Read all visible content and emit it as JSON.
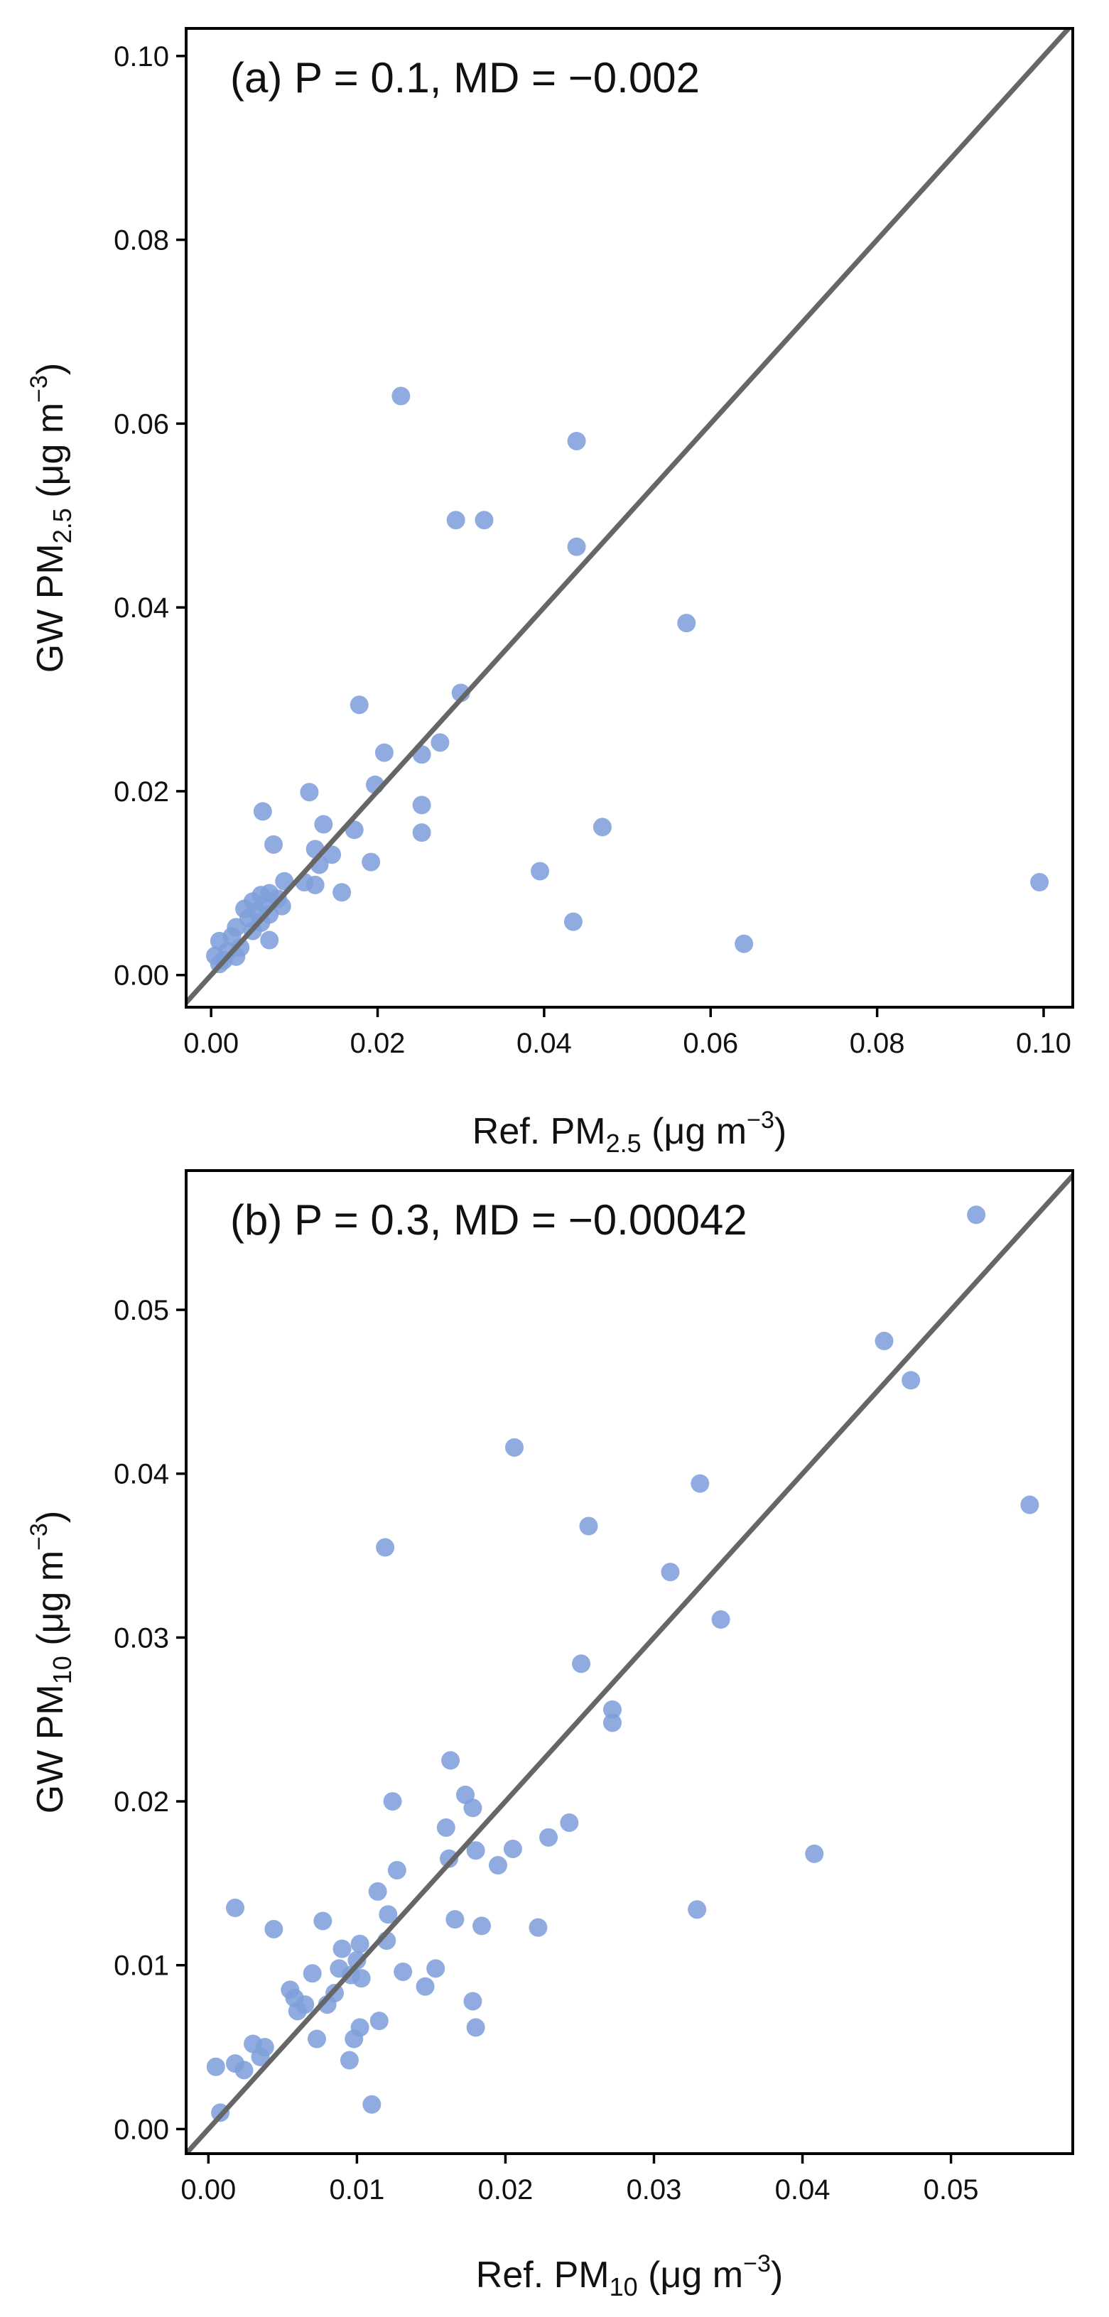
{
  "colors": {
    "points": "#7f9fdb",
    "line": "#666666",
    "frame": "#000000"
  },
  "chart_data": [
    {
      "type": "scatter",
      "panel_label": "(a) P = 0.1, MD = −0.002",
      "xlabel": {
        "prefix": "Ref. PM",
        "sub": "2.5",
        "suffix": " (μg m",
        "sup": "−3",
        "close": ")"
      },
      "ylabel": {
        "prefix": "GW PM",
        "sub": "2.5",
        "suffix": " (μg m",
        "sup": "−3",
        "close": ")"
      },
      "xlim": [
        -0.003,
        0.1035
      ],
      "ylim": [
        -0.0035,
        0.103
      ],
      "xticks": [
        0.0,
        0.02,
        0.04,
        0.06,
        0.08,
        0.1
      ],
      "xtick_labels": [
        "0.00",
        "0.02",
        "0.04",
        "0.06",
        "0.08",
        "0.10"
      ],
      "yticks": [
        0.0,
        0.02,
        0.04,
        0.06,
        0.08,
        0.1
      ],
      "ytick_labels": [
        "0.00",
        "0.02",
        "0.04",
        "0.06",
        "0.08",
        "0.10"
      ],
      "reference_line": "1:1",
      "points": [
        [
          0.0228,
          0.063
        ],
        [
          0.0439,
          0.0581
        ],
        [
          0.0294,
          0.0495
        ],
        [
          0.0328,
          0.0495
        ],
        [
          0.0439,
          0.0466
        ],
        [
          0.0571,
          0.0383
        ],
        [
          0.0178,
          0.0294
        ],
        [
          0.03,
          0.0307
        ],
        [
          0.0275,
          0.0253
        ],
        [
          0.0208,
          0.0242
        ],
        [
          0.0253,
          0.024
        ],
        [
          0.0197,
          0.0207
        ],
        [
          0.0118,
          0.0199
        ],
        [
          0.0253,
          0.0185
        ],
        [
          0.0062,
          0.0178
        ],
        [
          0.0135,
          0.0164
        ],
        [
          0.047,
          0.0161
        ],
        [
          0.0172,
          0.0158
        ],
        [
          0.0253,
          0.0155
        ],
        [
          0.0075,
          0.0142
        ],
        [
          0.0125,
          0.0137
        ],
        [
          0.0145,
          0.0131
        ],
        [
          0.0192,
          0.0123
        ],
        [
          0.013,
          0.012
        ],
        [
          0.0395,
          0.0113
        ],
        [
          0.0088,
          0.0102
        ],
        [
          0.0112,
          0.0101
        ],
        [
          0.0995,
          0.0101
        ],
        [
          0.0125,
          0.0098
        ],
        [
          0.0157,
          0.009
        ],
        [
          0.007,
          0.0089
        ],
        [
          0.006,
          0.0087
        ],
        [
          0.008,
          0.0083
        ],
        [
          0.005,
          0.008
        ],
        [
          0.0065,
          0.0077
        ],
        [
          0.0085,
          0.0075
        ],
        [
          0.004,
          0.0072
        ],
        [
          0.0055,
          0.0069
        ],
        [
          0.007,
          0.0066
        ],
        [
          0.0045,
          0.0062
        ],
        [
          0.0435,
          0.0058
        ],
        [
          0.006,
          0.0057
        ],
        [
          0.003,
          0.0052
        ],
        [
          0.005,
          0.0048
        ],
        [
          0.0025,
          0.0042
        ],
        [
          0.007,
          0.0038
        ],
        [
          0.001,
          0.0037
        ],
        [
          0.064,
          0.0034
        ],
        [
          0.0035,
          0.003
        ],
        [
          0.002,
          0.0026
        ],
        [
          0.0005,
          0.0021
        ],
        [
          0.0015,
          0.0016
        ],
        [
          0.003,
          0.002
        ],
        [
          0.001,
          0.0012
        ]
      ]
    },
    {
      "type": "scatter",
      "panel_label": "(b) P = 0.3, MD = −0.00042",
      "xlabel": {
        "prefix": "Ref. PM",
        "sub": "10",
        "suffix": " (μg m",
        "sup": "−3",
        "close": ")"
      },
      "ylabel": {
        "prefix": "GW PM",
        "sub": "10",
        "suffix": " (μg m",
        "sup": "−3",
        "close": ")"
      },
      "xlim": [
        -0.0015,
        0.0582
      ],
      "ylim": [
        -0.0015,
        0.0585
      ],
      "xticks": [
        0.0,
        0.01,
        0.02,
        0.03,
        0.04,
        0.05
      ],
      "xtick_labels": [
        "0.00",
        "0.01",
        "0.02",
        "0.03",
        "0.04",
        "0.05"
      ],
      "yticks": [
        0.0,
        0.01,
        0.02,
        0.03,
        0.04,
        0.05
      ],
      "ytick_labels": [
        "0.00",
        "0.01",
        "0.02",
        "0.03",
        "0.04",
        "0.05"
      ],
      "reference_line": "1:1",
      "points": [
        [
          0.0517,
          0.0558
        ],
        [
          0.0455,
          0.0481
        ],
        [
          0.0473,
          0.0457
        ],
        [
          0.0206,
          0.0416
        ],
        [
          0.0331,
          0.0394
        ],
        [
          0.0553,
          0.0381
        ],
        [
          0.0256,
          0.0368
        ],
        [
          0.0119,
          0.0355
        ],
        [
          0.0311,
          0.034
        ],
        [
          0.0345,
          0.0311
        ],
        [
          0.0251,
          0.0284
        ],
        [
          0.0272,
          0.0256
        ],
        [
          0.0272,
          0.0248
        ],
        [
          0.0163,
          0.0225
        ],
        [
          0.0173,
          0.0204
        ],
        [
          0.0124,
          0.02
        ],
        [
          0.0178,
          0.0196
        ],
        [
          0.0243,
          0.0187
        ],
        [
          0.016,
          0.0184
        ],
        [
          0.0229,
          0.0178
        ],
        [
          0.0205,
          0.0171
        ],
        [
          0.018,
          0.017
        ],
        [
          0.0408,
          0.0168
        ],
        [
          0.0162,
          0.0165
        ],
        [
          0.0195,
          0.0161
        ],
        [
          0.0127,
          0.0158
        ],
        [
          0.0114,
          0.0145
        ],
        [
          0.0018,
          0.0135
        ],
        [
          0.0329,
          0.0134
        ],
        [
          0.0121,
          0.0131
        ],
        [
          0.0166,
          0.0128
        ],
        [
          0.0077,
          0.0127
        ],
        [
          0.0184,
          0.0124
        ],
        [
          0.0222,
          0.0123
        ],
        [
          0.0044,
          0.0122
        ],
        [
          0.012,
          0.0115
        ],
        [
          0.0102,
          0.0113
        ],
        [
          0.009,
          0.011
        ],
        [
          0.01,
          0.0103
        ],
        [
          0.0088,
          0.0098
        ],
        [
          0.0153,
          0.0098
        ],
        [
          0.0131,
          0.0096
        ],
        [
          0.007,
          0.0095
        ],
        [
          0.0096,
          0.0094
        ],
        [
          0.0103,
          0.0092
        ],
        [
          0.0146,
          0.0087
        ],
        [
          0.0055,
          0.0085
        ],
        [
          0.0085,
          0.0083
        ],
        [
          0.0058,
          0.008
        ],
        [
          0.0178,
          0.0078
        ],
        [
          0.0065,
          0.0076
        ],
        [
          0.008,
          0.0076
        ],
        [
          0.006,
          0.0072
        ],
        [
          0.0115,
          0.0066
        ],
        [
          0.0102,
          0.0062
        ],
        [
          0.018,
          0.0062
        ],
        [
          0.0073,
          0.0055
        ],
        [
          0.0098,
          0.0055
        ],
        [
          0.003,
          0.0052
        ],
        [
          0.0038,
          0.005
        ],
        [
          0.0035,
          0.0044
        ],
        [
          0.0095,
          0.0042
        ],
        [
          0.0018,
          0.004
        ],
        [
          0.0005,
          0.0038
        ],
        [
          0.0024,
          0.0036
        ],
        [
          0.011,
          0.0015
        ],
        [
          0.0008,
          0.001
        ]
      ]
    }
  ]
}
